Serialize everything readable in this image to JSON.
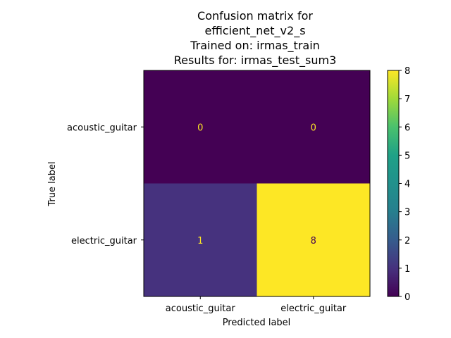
{
  "chart_data": {
    "type": "heatmap",
    "title_lines": [
      "Confusion matrix for",
      "efficient_net_v2_s",
      "Trained on: irmas_train",
      "Results for: irmas_test_sum3"
    ],
    "xlabel": "Predicted label",
    "ylabel": "True label",
    "x_categories": [
      "acoustic_guitar",
      "electric_guitar"
    ],
    "y_categories": [
      "acoustic_guitar",
      "electric_guitar"
    ],
    "matrix": [
      [
        0,
        0
      ],
      [
        1,
        8
      ]
    ],
    "colormap": "viridis",
    "colorbar": {
      "min": 0,
      "max": 8,
      "ticks": [
        0,
        1,
        2,
        3,
        4,
        5,
        6,
        7,
        8
      ]
    },
    "colors": {
      "low": "#440154",
      "high": "#fde725",
      "text_on_dark": "#fde725",
      "text_on_light": "#440154"
    },
    "grid": false
  }
}
